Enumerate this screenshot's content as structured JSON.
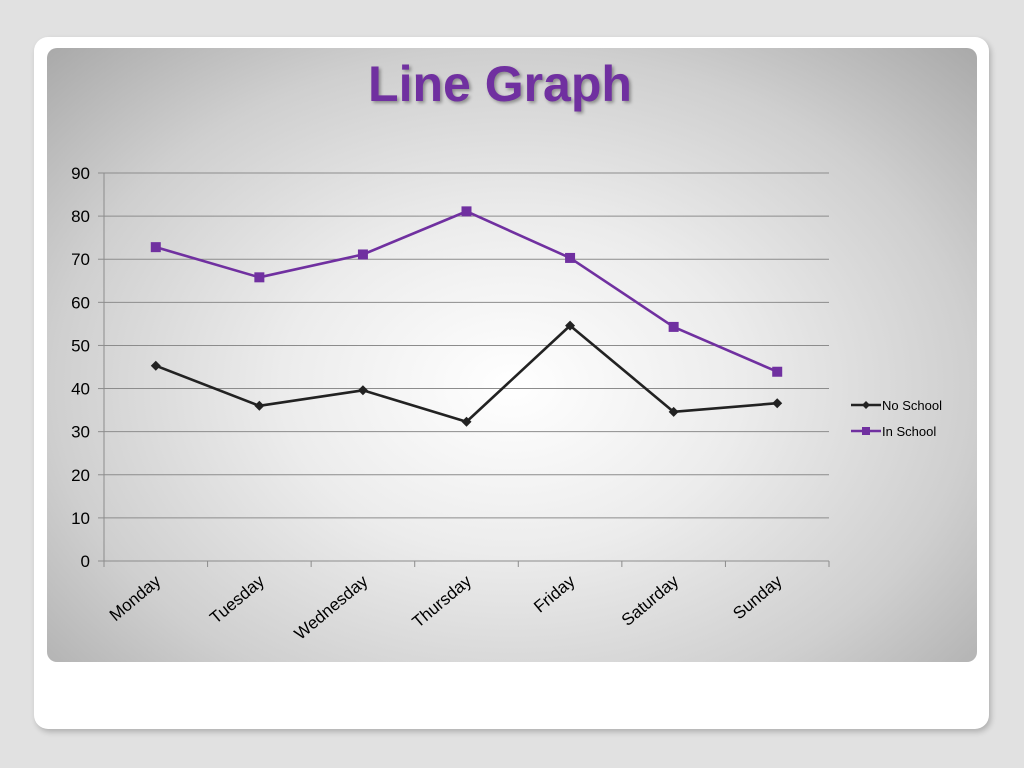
{
  "chart_data": {
    "type": "line",
    "title": "Line Graph",
    "xlabel": "",
    "ylabel": "",
    "categories": [
      "Monday",
      "Tuesday",
      "Wednesday",
      "Thursday",
      "Friday",
      "Saturday",
      "Sunday"
    ],
    "series": [
      {
        "name": "No School",
        "values": [
          45.3,
          36.0,
          39.6,
          32.3,
          54.6,
          34.6,
          36.6
        ],
        "color": "#222222",
        "marker": "diamond"
      },
      {
        "name": "In School",
        "values": [
          72.8,
          65.8,
          71.1,
          81.1,
          70.3,
          54.3,
          43.9
        ],
        "color": "#7030a0",
        "marker": "square"
      }
    ],
    "ylim": [
      0,
      90
    ],
    "yticks": [
      0,
      10,
      20,
      30,
      40,
      50,
      60,
      70,
      80,
      90
    ],
    "grid": true,
    "legend_position": "right"
  }
}
